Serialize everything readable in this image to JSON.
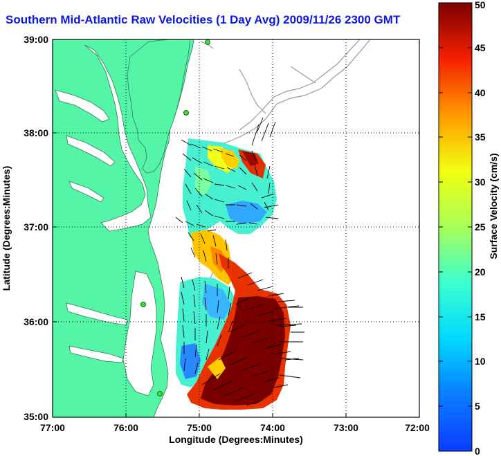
{
  "title": "Southern Mid-Atlantic Raw Velocities (1 Day Avg) 2009/11/26 2300 GMT",
  "map": {
    "xlabel": "Longitude (Degrees:Minutes)",
    "ylabel": "Latitude (Degrees:Minutes)",
    "x_ticks": [
      "77:00",
      "76:00",
      "75:00",
      "74:00",
      "73:00",
      "72:00"
    ],
    "y_ticks": [
      "39:00",
      "38:00",
      "37:00",
      "36:00",
      "35:00"
    ],
    "land_color": "#55f5a8",
    "grid": "dotted"
  },
  "colorbar": {
    "label": "Surface Velocity (cm/s)",
    "ticks": [
      "0",
      "5",
      "10",
      "15",
      "20",
      "25",
      "30",
      "35",
      "40",
      "45",
      "50"
    ],
    "range": [
      0,
      50
    ],
    "colormap": "jet"
  }
}
